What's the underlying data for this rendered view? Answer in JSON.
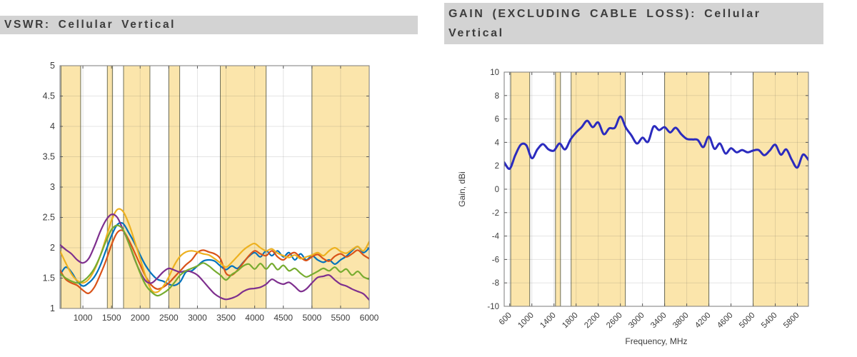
{
  "styles": {
    "band_fill": "#FBE5AB",
    "band_edge": "#6F6F58",
    "grid_color": "rgba(70,70,70,0.14)",
    "plot_border": "#7b7b7b",
    "tick_color": "#555555",
    "title_bg": "#d3d3d3",
    "title_color": "#3d3d3d"
  },
  "chart_data": [
    {
      "type": "line",
      "title": "VSWR: Cellular Vertical",
      "xlabel": "",
      "ylabel": "",
      "xlim": [
        600,
        6000
      ],
      "ylim": [
        1,
        5
      ],
      "xticks": [
        1000,
        1500,
        2000,
        2500,
        3000,
        3500,
        4000,
        4500,
        5000,
        5500,
        6000
      ],
      "yticks": [
        1,
        1.5,
        2,
        2.5,
        3,
        3.5,
        4,
        4.5,
        5
      ],
      "grid": true,
      "legend": "none",
      "xtick_rotation": 0,
      "bands": [
        [
          617,
          960
        ],
        [
          1427,
          1518
        ],
        [
          1710,
          2170
        ],
        [
          2500,
          2690
        ],
        [
          3400,
          4200
        ],
        [
          5000,
          6000
        ]
      ],
      "series": [
        {
          "name": "trace-blue",
          "color": "#0072BD",
          "x0": 600,
          "dx": 100,
          "y": [
            1.55,
            1.68,
            1.6,
            1.45,
            1.37,
            1.42,
            1.52,
            1.7,
            1.95,
            2.2,
            2.38,
            2.4,
            2.25,
            2.08,
            1.88,
            1.7,
            1.57,
            1.48,
            1.45,
            1.4,
            1.38,
            1.44,
            1.6,
            1.62,
            1.7,
            1.78,
            1.8,
            1.78,
            1.7,
            1.64,
            1.7,
            1.66,
            1.76,
            1.86,
            1.92,
            1.85,
            1.95,
            1.87,
            1.95,
            1.85,
            1.92,
            1.8,
            1.9,
            1.8,
            1.87,
            1.8,
            1.76,
            1.8,
            1.73,
            1.8,
            1.86,
            1.95,
            2.02,
            1.92,
            2.0
          ]
        },
        {
          "name": "trace-orange",
          "color": "#D95319",
          "x0": 600,
          "dx": 100,
          "y": [
            1.63,
            1.48,
            1.42,
            1.38,
            1.3,
            1.25,
            1.35,
            1.55,
            1.78,
            2.05,
            2.25,
            2.28,
            2.13,
            1.93,
            1.72,
            1.52,
            1.38,
            1.32,
            1.35,
            1.42,
            1.52,
            1.62,
            1.72,
            1.8,
            1.92,
            1.96,
            1.93,
            1.9,
            1.82,
            1.58,
            1.55,
            1.63,
            1.75,
            1.87,
            1.95,
            1.9,
            1.87,
            1.95,
            1.85,
            1.8,
            1.88,
            1.92,
            1.84,
            1.79,
            1.85,
            1.89,
            1.82,
            1.78,
            1.86,
            1.9,
            1.85,
            1.9,
            1.96,
            1.88,
            1.82
          ]
        },
        {
          "name": "trace-yellow",
          "color": "#EDB120",
          "x0": 600,
          "dx": 100,
          "y": [
            1.95,
            1.75,
            1.57,
            1.46,
            1.42,
            1.48,
            1.63,
            1.86,
            2.15,
            2.45,
            2.63,
            2.6,
            2.4,
            2.12,
            1.82,
            1.52,
            1.3,
            1.27,
            1.36,
            1.52,
            1.72,
            1.86,
            1.93,
            1.95,
            1.93,
            1.9,
            1.88,
            1.82,
            1.75,
            1.68,
            1.76,
            1.86,
            1.96,
            2.03,
            2.07,
            2.0,
            1.95,
            1.98,
            1.91,
            1.87,
            1.84,
            1.88,
            1.82,
            1.85,
            1.88,
            1.92,
            1.87,
            1.95,
            2.0,
            1.94,
            1.91,
            1.97,
            2.02,
            1.95,
            2.1
          ]
        },
        {
          "name": "trace-purple",
          "color": "#7E2F8E",
          "x0": 600,
          "dx": 100,
          "y": [
            2.05,
            1.97,
            1.9,
            1.8,
            1.75,
            1.82,
            2.02,
            2.26,
            2.45,
            2.55,
            2.5,
            2.3,
            2.08,
            1.82,
            1.6,
            1.45,
            1.42,
            1.5,
            1.6,
            1.66,
            1.63,
            1.6,
            1.62,
            1.6,
            1.55,
            1.45,
            1.34,
            1.24,
            1.18,
            1.15,
            1.17,
            1.21,
            1.28,
            1.32,
            1.33,
            1.35,
            1.4,
            1.48,
            1.43,
            1.4,
            1.43,
            1.36,
            1.28,
            1.32,
            1.42,
            1.51,
            1.53,
            1.55,
            1.47,
            1.4,
            1.37,
            1.32,
            1.28,
            1.24,
            1.14
          ]
        },
        {
          "name": "trace-green",
          "color": "#77AC30",
          "x0": 600,
          "dx": 100,
          "y": [
            1.58,
            1.5,
            1.45,
            1.42,
            1.45,
            1.53,
            1.66,
            1.86,
            2.1,
            2.3,
            2.37,
            2.3,
            2.08,
            1.83,
            1.58,
            1.38,
            1.27,
            1.21,
            1.25,
            1.32,
            1.43,
            1.55,
            1.62,
            1.66,
            1.7,
            1.75,
            1.7,
            1.62,
            1.55,
            1.47,
            1.56,
            1.62,
            1.7,
            1.73,
            1.65,
            1.74,
            1.65,
            1.74,
            1.64,
            1.71,
            1.62,
            1.66,
            1.58,
            1.52,
            1.56,
            1.61,
            1.66,
            1.62,
            1.68,
            1.6,
            1.65,
            1.55,
            1.61,
            1.52,
            1.48
          ]
        }
      ]
    },
    {
      "type": "line",
      "title": "GAIN (EXCLUDING CABLE LOSS): Cellular Vertical",
      "xlabel": "Frequency, MHz",
      "ylabel": "Gain, dBi",
      "xlim": [
        500,
        6000
      ],
      "ylim": [
        -10,
        10
      ],
      "xticks": [
        600,
        1000,
        1400,
        1800,
        2200,
        2600,
        3000,
        3400,
        3800,
        4200,
        4600,
        5000,
        5400,
        5800
      ],
      "yticks": [
        -10,
        -8,
        -6,
        -4,
        -2,
        0,
        2,
        4,
        6,
        8,
        10
      ],
      "grid": true,
      "legend": "none",
      "xtick_rotation": -45,
      "bands": [
        [
          617,
          960
        ],
        [
          1427,
          1518
        ],
        [
          1710,
          2690
        ],
        [
          3400,
          4200
        ],
        [
          5000,
          6000
        ]
      ],
      "series": [
        {
          "name": "gain-trace",
          "color": "#2B2BBE",
          "x0": 500,
          "dx": 100,
          "y": [
            2.3,
            1.75,
            2.9,
            3.8,
            3.75,
            2.65,
            3.4,
            3.85,
            3.4,
            3.3,
            3.9,
            3.4,
            4.25,
            4.85,
            5.3,
            5.85,
            5.3,
            5.7,
            4.7,
            5.2,
            5.25,
            6.2,
            5.25,
            4.6,
            3.9,
            4.4,
            4.05,
            5.35,
            5.05,
            5.3,
            4.85,
            5.25,
            4.7,
            4.3,
            4.25,
            4.2,
            3.6,
            4.5,
            3.45,
            3.9,
            3.05,
            3.5,
            3.15,
            3.35,
            3.15,
            3.3,
            3.35,
            2.9,
            3.3,
            3.8,
            2.95,
            3.4,
            2.5,
            1.85,
            2.95,
            2.5
          ]
        }
      ]
    }
  ]
}
